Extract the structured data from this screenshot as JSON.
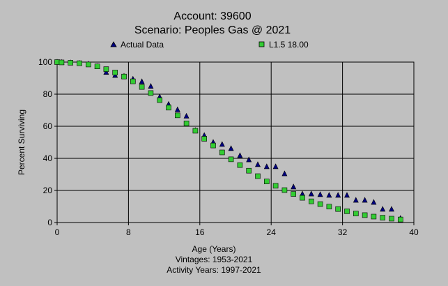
{
  "chart_data": {
    "type": "scatter",
    "title": "Account: 39600",
    "subtitle": "Scenario: Peoples Gas @ 2021",
    "xlabel": "Age (Years)",
    "ylabel": "Percent Surviving",
    "footnotes": [
      "Vintages: 1953-2021",
      "Activity Years: 1997-2021"
    ],
    "xlim": [
      0,
      40
    ],
    "ylim": [
      0,
      100
    ],
    "xticks": [
      0,
      8,
      16,
      24,
      32,
      40
    ],
    "yticks": [
      0,
      20,
      40,
      60,
      80,
      100
    ],
    "xtick_labels": [
      "0",
      "8",
      "16",
      "24",
      "32",
      "40"
    ],
    "ytick_labels": [
      "0",
      "20",
      "40",
      "60",
      "80",
      "100"
    ],
    "grid": true,
    "legend_position": "top",
    "series": [
      {
        "name": "Actual Data",
        "marker": "triangle",
        "color": "#000080",
        "points": [
          [
            0,
            100
          ],
          [
            0.5,
            99.8
          ],
          [
            1.5,
            99.6
          ],
          [
            2.5,
            99.3
          ],
          [
            3.5,
            98.8
          ],
          [
            4.5,
            97.2
          ],
          [
            5.5,
            93.6
          ],
          [
            6.5,
            91.7
          ],
          [
            7.5,
            91.2
          ],
          [
            8.5,
            89.4
          ],
          [
            9.5,
            87.8
          ],
          [
            10.5,
            84.9
          ],
          [
            11.5,
            78.3
          ],
          [
            12.5,
            73.7
          ],
          [
            13.5,
            70.3
          ],
          [
            14.5,
            66.3
          ],
          [
            15.5,
            57.4
          ],
          [
            16.5,
            54.3
          ],
          [
            17.5,
            50.0
          ],
          [
            18.5,
            48.7
          ],
          [
            19.5,
            46.1
          ],
          [
            20.5,
            41.7
          ],
          [
            21.5,
            39.1
          ],
          [
            22.5,
            36.1
          ],
          [
            23.5,
            34.8
          ],
          [
            24.5,
            34.8
          ],
          [
            25.5,
            30.4
          ],
          [
            26.5,
            22.2
          ],
          [
            27.5,
            17.8
          ],
          [
            28.5,
            17.8
          ],
          [
            29.5,
            17.4
          ],
          [
            30.5,
            17.0
          ],
          [
            31.5,
            17.0
          ],
          [
            32.5,
            17.0
          ],
          [
            33.5,
            13.9
          ],
          [
            34.5,
            13.9
          ],
          [
            35.5,
            12.6
          ],
          [
            36.5,
            8.3
          ],
          [
            37.5,
            8.3
          ],
          [
            38.5,
            2.6
          ]
        ]
      },
      {
        "name": "L1.5 18.00",
        "marker": "square",
        "color": "#33cc33",
        "points": [
          [
            0,
            100
          ],
          [
            0.5,
            99.8
          ],
          [
            1.5,
            99.6
          ],
          [
            2.5,
            99.3
          ],
          [
            3.5,
            98.5
          ],
          [
            4.5,
            97.3
          ],
          [
            5.5,
            95.6
          ],
          [
            6.5,
            93.5
          ],
          [
            7.5,
            91.0
          ],
          [
            8.5,
            88.0
          ],
          [
            9.5,
            84.5
          ],
          [
            10.5,
            80.7
          ],
          [
            11.5,
            76.3
          ],
          [
            12.5,
            71.6
          ],
          [
            13.5,
            66.8
          ],
          [
            14.5,
            61.8
          ],
          [
            15.5,
            57.2
          ],
          [
            16.5,
            52.2
          ],
          [
            17.5,
            48.0
          ],
          [
            18.5,
            43.7
          ],
          [
            19.5,
            39.4
          ],
          [
            20.5,
            35.8
          ],
          [
            21.5,
            32.3
          ],
          [
            22.5,
            28.9
          ],
          [
            23.5,
            25.6
          ],
          [
            24.5,
            22.9
          ],
          [
            25.5,
            20.2
          ],
          [
            26.5,
            17.8
          ],
          [
            27.5,
            15.4
          ],
          [
            28.5,
            13.2
          ],
          [
            29.5,
            11.5
          ],
          [
            30.5,
            9.9
          ],
          [
            31.5,
            8.4
          ],
          [
            32.5,
            7.0
          ],
          [
            33.5,
            5.6
          ],
          [
            34.5,
            4.6
          ],
          [
            35.5,
            3.7
          ],
          [
            36.5,
            3.0
          ],
          [
            37.5,
            2.4
          ],
          [
            38.5,
            1.9
          ]
        ]
      }
    ]
  }
}
